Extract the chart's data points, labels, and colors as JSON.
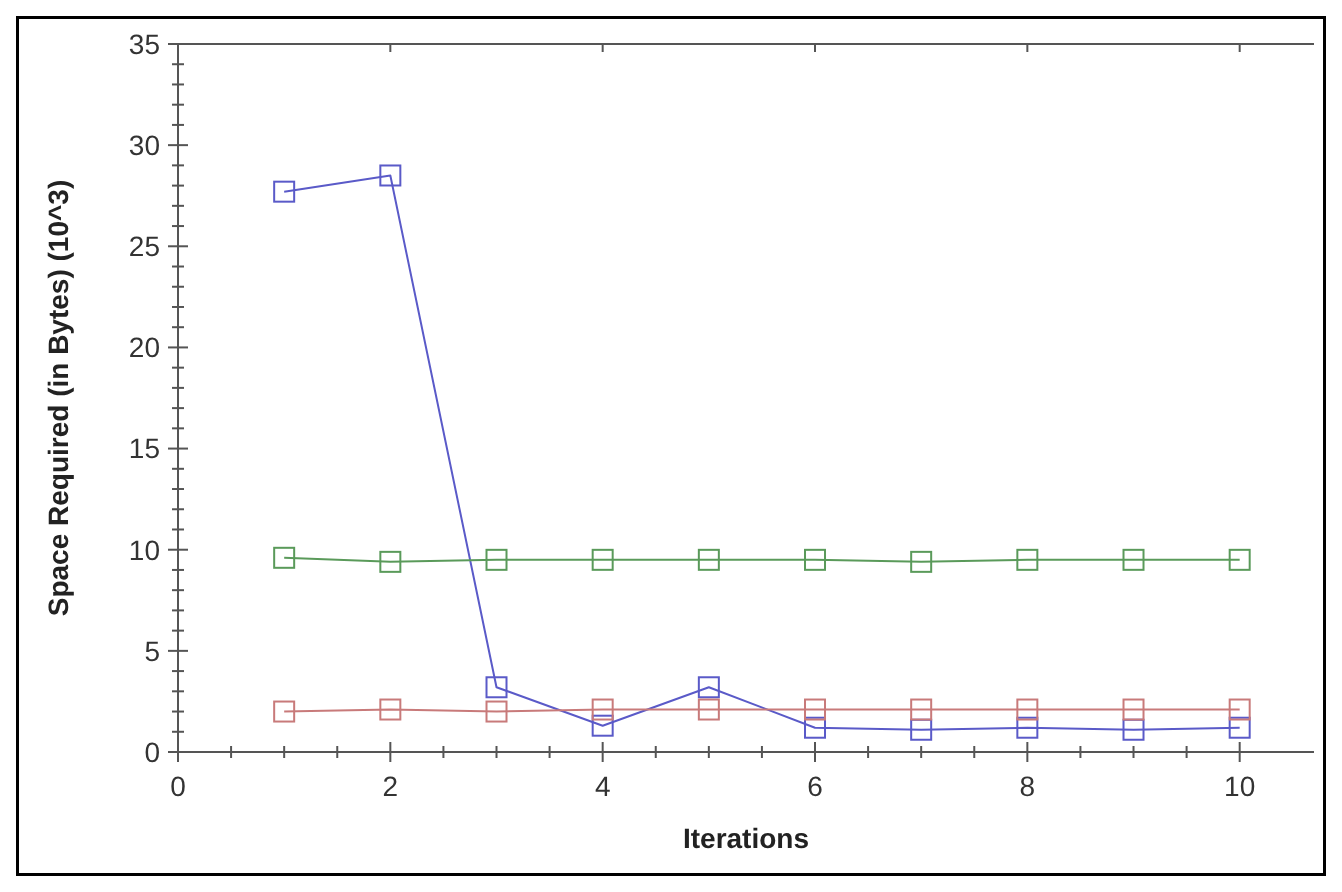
{
  "chart_data": {
    "type": "line",
    "xlabel": "Iterations",
    "ylabel": "Space Required (in Bytes) (10^3)",
    "x": [
      1,
      2,
      3,
      4,
      5,
      6,
      7,
      8,
      9,
      10
    ],
    "series": [
      {
        "color": "#5a5ac8",
        "values": [
          27.7,
          28.5,
          3.2,
          1.3,
          3.2,
          1.2,
          1.1,
          1.2,
          1.1,
          1.2
        ]
      },
      {
        "color": "#5a9a5a",
        "values": [
          9.6,
          9.4,
          9.5,
          9.5,
          9.5,
          9.5,
          9.4,
          9.5,
          9.5,
          9.5
        ]
      },
      {
        "color": "#c87a7a",
        "values": [
          2.0,
          2.1,
          2.0,
          2.1,
          2.1,
          2.1,
          2.1,
          2.1,
          2.1,
          2.1
        ]
      }
    ],
    "xlim": [
      0,
      10.7
    ],
    "xticks": [
      0,
      2,
      4,
      6,
      8,
      10
    ],
    "ylim": [
      0,
      35
    ],
    "yticks": [
      0,
      5,
      10,
      15,
      20,
      25,
      30,
      35
    ],
    "grid": false,
    "marker": "square",
    "line_style": "solid"
  }
}
